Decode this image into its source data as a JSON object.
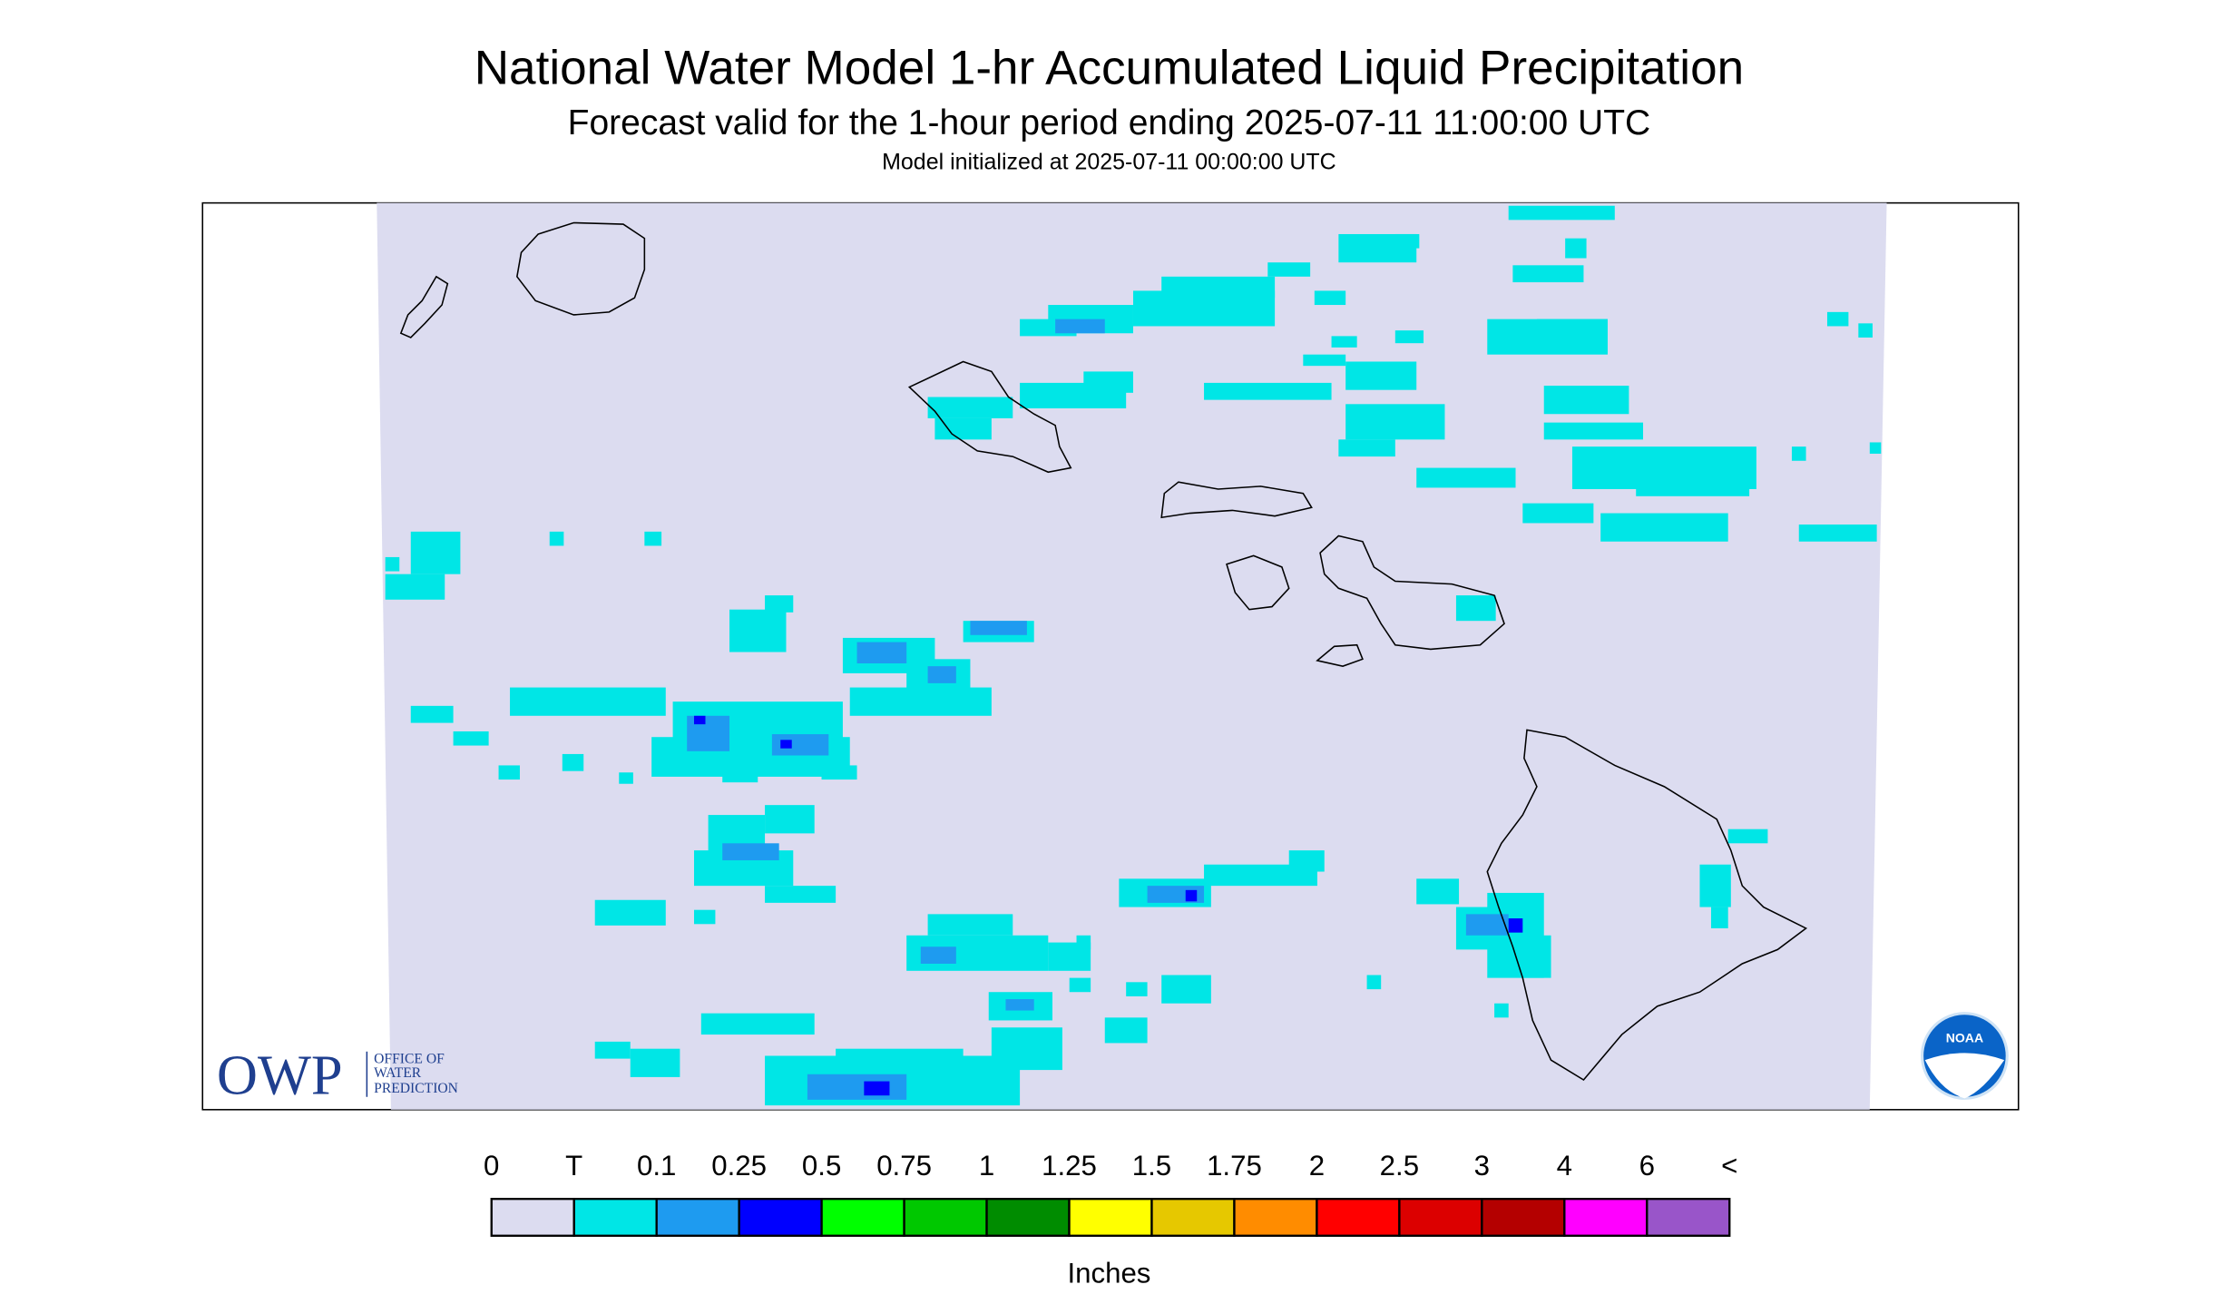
{
  "header": {
    "title": "National Water Model 1-hr Accumulated Liquid Precipitation",
    "subtitle": "Forecast valid for the 1-hour period ending 2025-07-11 11:00:00 UTC",
    "init": "Model initialized at 2025-07-11 00:00:00 UTC"
  },
  "legend": {
    "labels": [
      "0",
      "T",
      "0.1",
      "0.25",
      "0.5",
      "0.75",
      "1",
      "1.25",
      "1.5",
      "1.75",
      "2",
      "2.5",
      "3",
      "4",
      "6",
      "<"
    ],
    "colors": [
      "#dcdcf0",
      "#00e6e6",
      "#1e9bf0",
      "#0000ff",
      "#00ff00",
      "#00c800",
      "#008c00",
      "#ffff00",
      "#e6c800",
      "#ff8c00",
      "#ff0000",
      "#dc0000",
      "#b40000",
      "#ff00ff",
      "#9955c9"
    ],
    "unit": "Inches"
  },
  "logos": {
    "owp": "OWP",
    "owp_text": [
      "OFFICE OF",
      "WATER",
      "PREDICTION"
    ],
    "noaa": "NOAA"
  }
}
